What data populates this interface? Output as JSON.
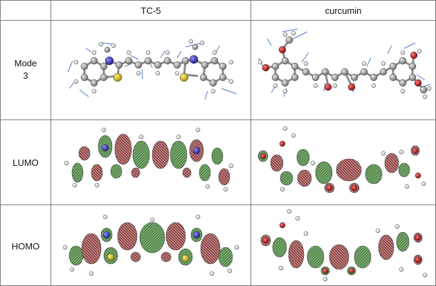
{
  "table": {
    "columns": [
      "TC-5",
      "curcumin"
    ],
    "rows": [
      {
        "label_lines": [
          "Mode",
          "3"
        ]
      },
      {
        "label_lines": [
          "LUMO"
        ]
      },
      {
        "label_lines": [
          "HOMO"
        ]
      }
    ]
  },
  "colors": {
    "grid": "#7a7a7a",
    "carbon": "#9a9a9a",
    "hydrogen": "#eeeeee",
    "nitrogen": "#3a3aa8",
    "sulfur": "#d8c020",
    "oxygen": "#cc1a1a",
    "arrow": "#4a78c8",
    "lobe_positive": "#5a9a50",
    "lobe_negative": "#7a2a2a"
  }
}
